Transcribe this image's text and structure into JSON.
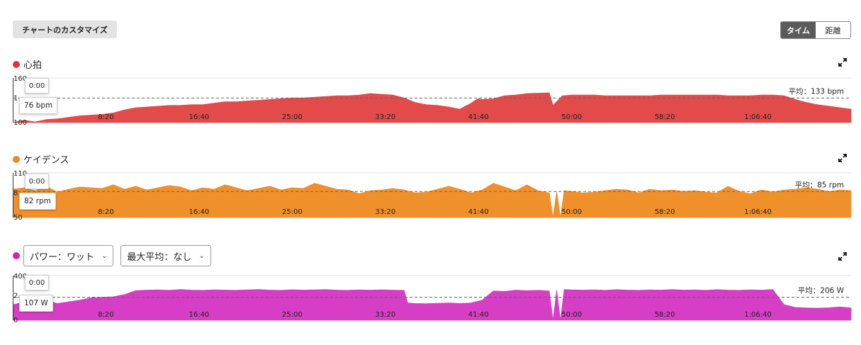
{
  "header": {
    "customize_label": "チャートのカスタマイズ",
    "toggle": {
      "time_label": "タイム",
      "distance_label": "距離",
      "selected": "タイム"
    }
  },
  "controls": {
    "power_select": "パワー：ワット",
    "max_avg_select": "最大平均：なし"
  },
  "hover": {
    "time": "0:00"
  },
  "chart_data": [
    {
      "type": "area",
      "title": "心拍",
      "color": "#e34a4a",
      "dot_color": "#e0333a",
      "ylim": [
        100,
        160
      ],
      "y_ticks": [
        "160",
        "1",
        "100"
      ],
      "avg_label": "平均：133 bpm",
      "average": 133,
      "hover_value": "76 bpm",
      "x_ticks": [
        "8:20",
        "16:40",
        "25:00",
        "33:20",
        "41:40",
        "50:00",
        "58:20",
        "1:06:40"
      ],
      "x_tick_seconds": [
        500,
        1000,
        1500,
        2000,
        2500,
        3000,
        3500,
        4000
      ],
      "x_max_seconds": 4500,
      "x": [
        0,
        60,
        120,
        180,
        240,
        300,
        360,
        420,
        480,
        540,
        600,
        660,
        720,
        780,
        840,
        900,
        960,
        1020,
        1080,
        1140,
        1200,
        1260,
        1320,
        1380,
        1440,
        1500,
        1560,
        1620,
        1680,
        1740,
        1800,
        1860,
        1920,
        1980,
        2040,
        2100,
        2160,
        2220,
        2280,
        2340,
        2400,
        2460,
        2490,
        2500,
        2520,
        2580,
        2640,
        2700,
        2760,
        2880,
        2900,
        2950,
        3000,
        3060,
        3120,
        3180,
        3240,
        3300,
        3360,
        3420,
        3480,
        3540,
        3600,
        3660,
        3720,
        3780,
        3840,
        3900,
        3960,
        4020,
        4080,
        4140,
        4200,
        4260,
        4320,
        4380,
        4440,
        4500
      ],
      "values": [
        100,
        103,
        101,
        104,
        105,
        107,
        109,
        110,
        111,
        113,
        117,
        120,
        121,
        122,
        123,
        123,
        124,
        124,
        126,
        128,
        128,
        129,
        130,
        131,
        132,
        133,
        133,
        134,
        135,
        136,
        136,
        137,
        139,
        138,
        137,
        133,
        127,
        124,
        123,
        121,
        118,
        126,
        131,
        132,
        131,
        132,
        136,
        137,
        139,
        140,
        123,
        136,
        137,
        137,
        137,
        136,
        136,
        136,
        136,
        136,
        137,
        137,
        137,
        137,
        137,
        137,
        136,
        136,
        136,
        137,
        137,
        136,
        131,
        127,
        124,
        122,
        120,
        118
      ]
    },
    {
      "type": "area",
      "title": "ケイデンス",
      "color": "#f0902a",
      "dot_color": "#ee8a1c",
      "ylim": [
        50,
        110
      ],
      "y_ticks": [
        "110",
        "8",
        "50"
      ],
      "avg_label": "平均：85 rpm",
      "average": 85,
      "hover_value": "82 rpm",
      "x_ticks": [
        "8:20",
        "16:40",
        "25:00",
        "33:20",
        "41:40",
        "50:00",
        "58:20",
        "1:06:40"
      ],
      "x_tick_seconds": [
        500,
        1000,
        1500,
        2000,
        2500,
        3000,
        3500,
        4000
      ],
      "x_max_seconds": 4500,
      "x": [
        0,
        60,
        120,
        180,
        240,
        300,
        360,
        420,
        480,
        540,
        600,
        660,
        720,
        780,
        840,
        900,
        960,
        1020,
        1080,
        1140,
        1200,
        1260,
        1320,
        1380,
        1440,
        1500,
        1560,
        1620,
        1680,
        1740,
        1800,
        1860,
        1920,
        1980,
        2040,
        2100,
        2160,
        2220,
        2280,
        2340,
        2400,
        2460,
        2520,
        2580,
        2640,
        2700,
        2760,
        2820,
        2880,
        2900,
        2920,
        2940,
        2960,
        3000,
        3060,
        3120,
        3180,
        3240,
        3300,
        3360,
        3420,
        3480,
        3540,
        3600,
        3660,
        3720,
        3780,
        3840,
        3900,
        3960,
        4020,
        4080,
        4140,
        4200,
        4260,
        4320,
        4380,
        4440,
        4500
      ],
      "values": [
        88,
        90,
        86,
        92,
        84,
        88,
        91,
        90,
        89,
        94,
        88,
        92,
        87,
        90,
        93,
        91,
        86,
        90,
        88,
        94,
        90,
        86,
        89,
        92,
        87,
        90,
        89,
        96,
        92,
        88,
        87,
        82,
        86,
        87,
        89,
        87,
        83,
        84,
        88,
        92,
        88,
        83,
        87,
        96,
        91,
        86,
        94,
        86,
        83,
        50,
        85,
        50,
        86,
        85,
        83,
        84,
        86,
        88,
        87,
        83,
        88,
        86,
        87,
        85,
        86,
        84,
        83,
        92,
        85,
        82,
        87,
        84,
        87,
        88,
        90,
        88,
        85,
        87,
        86
      ]
    },
    {
      "type": "area",
      "title": "",
      "color": "#d63fc5",
      "dot_color": "#d024b4",
      "ylim": [
        0,
        400
      ],
      "y_ticks": [
        "400",
        "2",
        "0"
      ],
      "avg_label": "平均：206 W",
      "average": 206,
      "hover_value": "107 W",
      "x_ticks": [
        "8:20",
        "16:40",
        "25:00",
        "33:20",
        "41:40",
        "50:00",
        "58:20",
        "1:06:40"
      ],
      "x_tick_seconds": [
        500,
        1000,
        1500,
        2000,
        2500,
        3000,
        3500,
        4000
      ],
      "x_max_seconds": 4500,
      "x": [
        0,
        60,
        120,
        180,
        240,
        300,
        360,
        420,
        480,
        540,
        600,
        660,
        720,
        780,
        840,
        900,
        960,
        1020,
        1080,
        1140,
        1200,
        1260,
        1320,
        1380,
        1440,
        1500,
        1560,
        1620,
        1680,
        1740,
        1800,
        1860,
        1920,
        1980,
        2040,
        2100,
        2120,
        2160,
        2220,
        2280,
        2340,
        2400,
        2460,
        2520,
        2580,
        2640,
        2700,
        2760,
        2820,
        2880,
        2900,
        2920,
        2940,
        2960,
        3000,
        3060,
        3120,
        3180,
        3240,
        3300,
        3360,
        3420,
        3480,
        3540,
        3600,
        3660,
        3720,
        3780,
        3840,
        3900,
        3960,
        4020,
        4080,
        4140,
        4200,
        4260,
        4320,
        4380,
        4440,
        4500
      ],
      "values": [
        140,
        160,
        170,
        175,
        150,
        165,
        180,
        200,
        205,
        210,
        230,
        265,
        270,
        272,
        268,
        275,
        270,
        268,
        272,
        270,
        268,
        272,
        275,
        270,
        268,
        273,
        270,
        272,
        274,
        270,
        268,
        272,
        270,
        272,
        270,
        268,
        155,
        150,
        148,
        152,
        155,
        150,
        155,
        180,
        262,
        258,
        270,
        265,
        268,
        262,
        0,
        270,
        0,
        275,
        272,
        270,
        272,
        268,
        274,
        270,
        268,
        272,
        270,
        275,
        270,
        272,
        268,
        274,
        270,
        268,
        272,
        270,
        275,
        140,
        115,
        110,
        108,
        112,
        120,
        110
      ]
    }
  ]
}
